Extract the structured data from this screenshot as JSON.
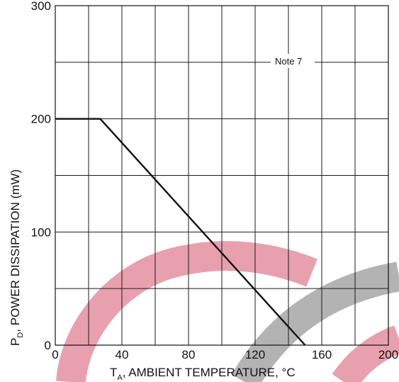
{
  "chart_data": {
    "type": "line",
    "title": "",
    "xlabel": {
      "main": "T",
      "sub": "A",
      "rest": ", AMBIENT TEMPERATURE, °C"
    },
    "ylabel": {
      "main": "P",
      "sub": "D",
      "rest": ", POWER DISSIPATION (mW)"
    },
    "xlim": [
      0,
      200
    ],
    "ylim": [
      0,
      300
    ],
    "x_ticks": [
      0,
      40,
      80,
      120,
      160,
      200
    ],
    "y_ticks": [
      0,
      100,
      200,
      300
    ],
    "x_grid_step": 20,
    "y_grid_step": 50,
    "grid": true,
    "annotation": "Note 7",
    "series": [
      {
        "x": [
          0,
          27,
          150
        ],
        "y": [
          200,
          200,
          0
        ]
      }
    ]
  },
  "watermark": {
    "colors": [
      "#e8a0ae",
      "#b3b3b3"
    ]
  }
}
